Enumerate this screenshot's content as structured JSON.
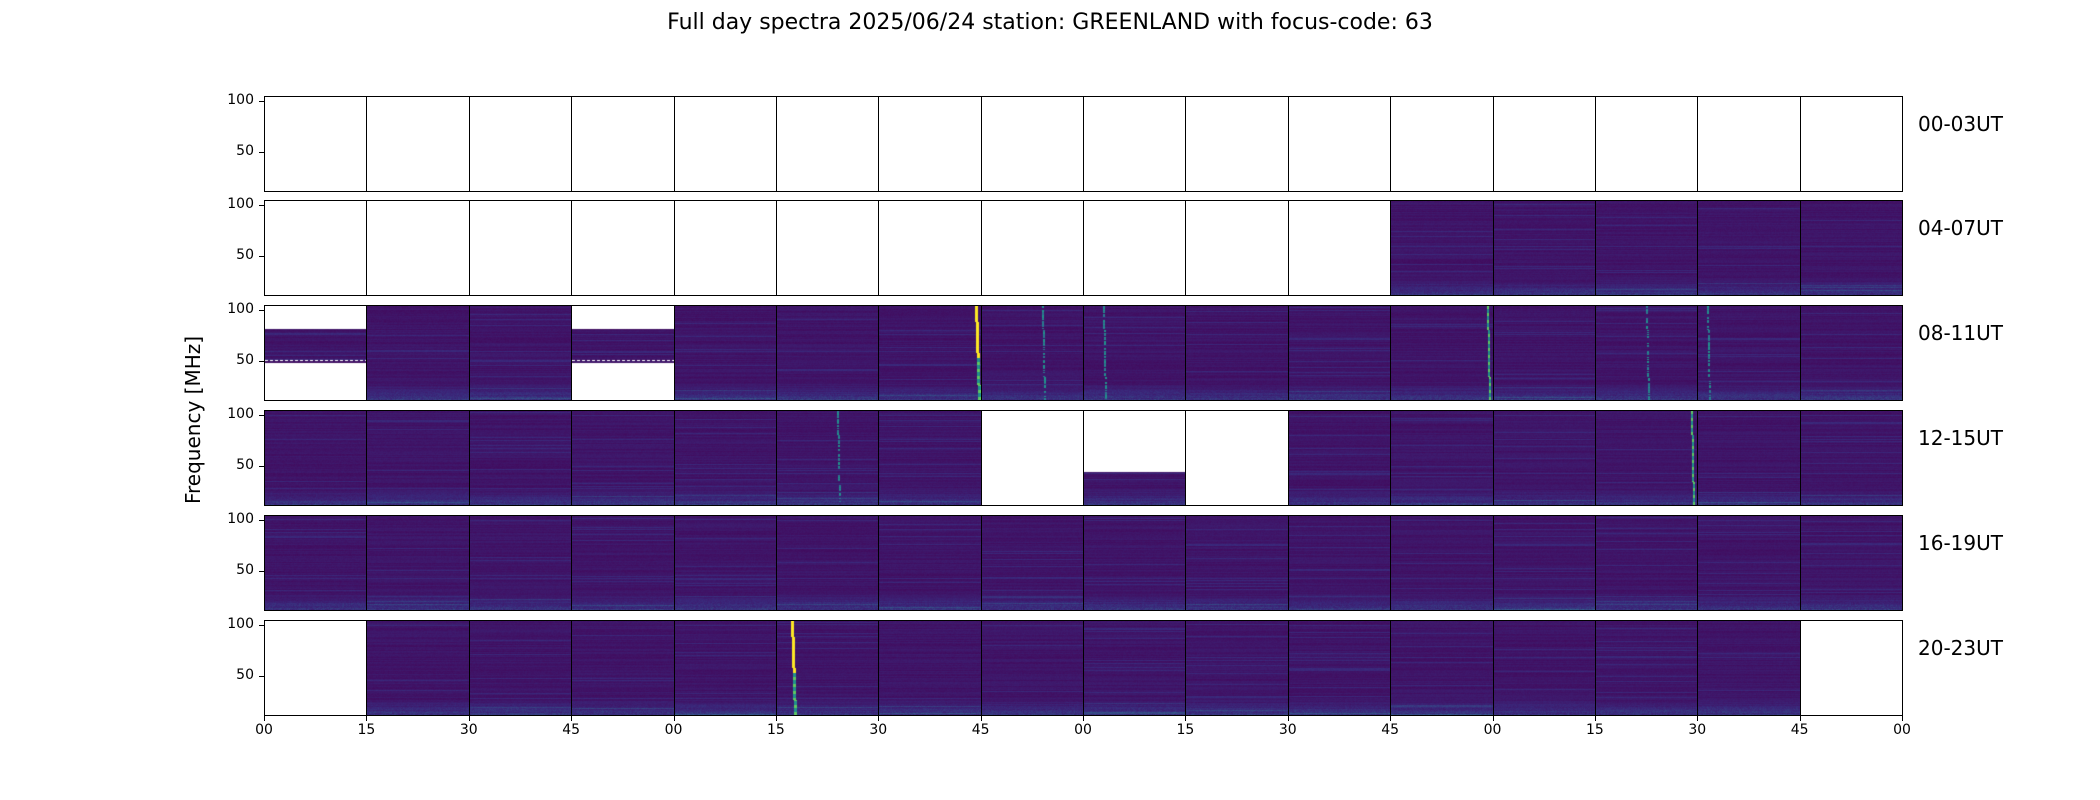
{
  "title": "Full day spectra 2025/06/24 station: GREENLAND with focus-code: 63",
  "colors": {
    "background": "#440154",
    "mid": "#31688e",
    "teal": "#21918c",
    "green": "#5ec962",
    "yellow": "#fde725"
  },
  "chart_data": {
    "type": "heatmap",
    "title": "Full day spectra 2025/06/24 station: GREENLAND with focus-code: 63",
    "ylabel": "Frequency [MHz]",
    "xlabel": "",
    "colormap": "viridis",
    "ylim": [
      10,
      105
    ],
    "yticks": [
      "100",
      "50"
    ],
    "xticks": [
      "00",
      "15",
      "30",
      "45",
      "00",
      "15",
      "30",
      "45",
      "00",
      "15",
      "30",
      "45",
      "00",
      "15",
      "30",
      "45",
      "00"
    ],
    "rows": [
      {
        "label": "00-03UT",
        "panels": [
          "none",
          "none",
          "none",
          "none",
          "none",
          "none",
          "none",
          "none",
          "none",
          "none",
          "none",
          "none",
          "none",
          "none",
          "none",
          "none"
        ],
        "bursts": []
      },
      {
        "label": "04-07UT",
        "panels": [
          "none",
          "none",
          "none",
          "none",
          "none",
          "none",
          "none",
          "none",
          "none",
          "none",
          "none",
          "full",
          "full",
          "full",
          "full",
          "full"
        ],
        "bursts": []
      },
      {
        "label": "08-11UT",
        "panels": [
          "partial",
          "full",
          "full",
          "partial",
          "full",
          "full",
          "full",
          "full",
          "full",
          "full",
          "full",
          "full",
          "full",
          "full",
          "full",
          "full"
        ],
        "bursts": [
          {
            "panel": 6,
            "position": 0.95,
            "strength": "strong"
          },
          {
            "panel": 7,
            "position": 0.6,
            "strength": "weak"
          },
          {
            "panel": 8,
            "position": 0.2,
            "strength": "weak"
          },
          {
            "panel": 11,
            "position": 0.95,
            "strength": "medium"
          },
          {
            "panel": 13,
            "position": 0.5,
            "strength": "weak"
          },
          {
            "panel": 14,
            "position": 0.1,
            "strength": "weak"
          }
        ]
      },
      {
        "label": "12-15UT",
        "panels": [
          "full",
          "full",
          "full",
          "full",
          "full",
          "full",
          "full",
          "none",
          "partial-upper",
          "none",
          "full",
          "full",
          "full",
          "full",
          "full",
          "full"
        ],
        "bursts": [
          {
            "panel": 5,
            "position": 0.6,
            "strength": "weak"
          },
          {
            "panel": 13,
            "position": 0.95,
            "strength": "medium"
          }
        ]
      },
      {
        "label": "16-19UT",
        "panels": [
          "full",
          "full",
          "full",
          "full",
          "full",
          "full",
          "full",
          "full",
          "full",
          "full",
          "full",
          "full",
          "full",
          "full",
          "full",
          "full"
        ],
        "bursts": []
      },
      {
        "label": "20-23UT",
        "panels": [
          "none",
          "full",
          "full",
          "full",
          "full",
          "full",
          "full",
          "full",
          "full",
          "full",
          "full",
          "full",
          "full",
          "full",
          "full",
          "none"
        ],
        "bursts": [
          {
            "panel": 5,
            "position": 0.15,
            "strength": "strong"
          }
        ]
      }
    ]
  }
}
